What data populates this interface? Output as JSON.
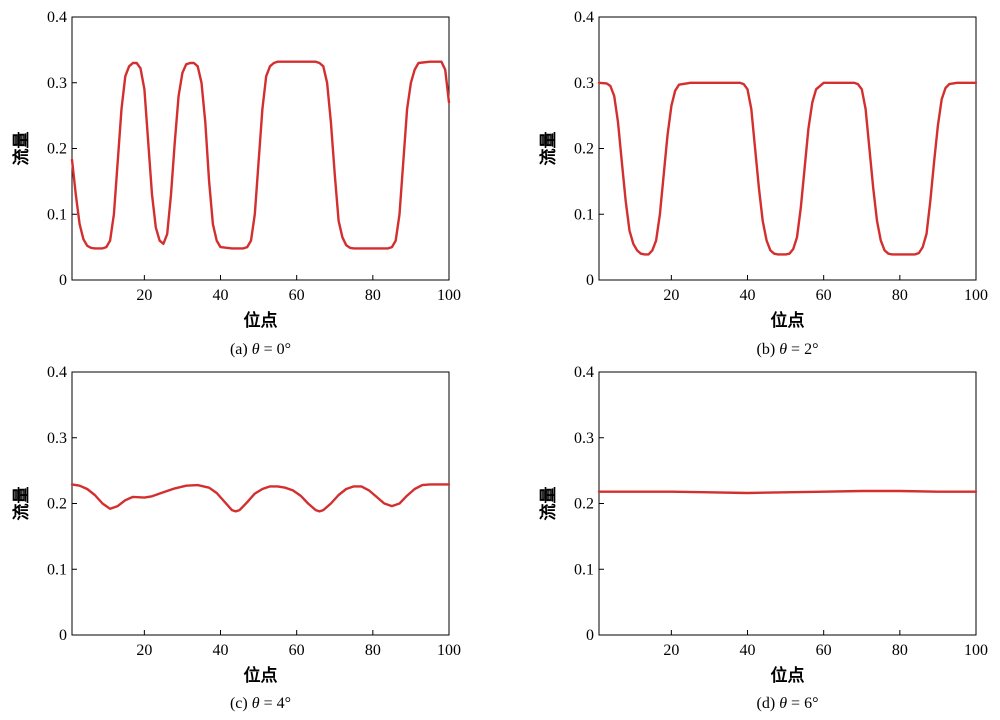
{
  "colors": {
    "series": "#d32f2f",
    "axis": "#000000",
    "background": "#ffffff"
  },
  "chart_data": [
    {
      "type": "line",
      "caption": {
        "prefix": "(a) ",
        "symbol": "θ",
        "suffix": " = 0°"
      },
      "xlabel": "位点",
      "ylabel": "流量",
      "xlim": [
        1,
        100
      ],
      "ylim": [
        0,
        0.4
      ],
      "xticks": [
        20,
        40,
        60,
        80,
        100
      ],
      "xtick_labels": [
        "20",
        "40",
        "60",
        "80",
        "100"
      ],
      "yticks": [
        0,
        0.1,
        0.2,
        0.3,
        0.4
      ],
      "ytick_labels": [
        "0",
        "0.1",
        "0.2",
        "0.3",
        "0.4"
      ],
      "grid": false,
      "series": [
        {
          "x": [
            1,
            2,
            3,
            4,
            5,
            6,
            7,
            9,
            10,
            11,
            12,
            13,
            14,
            15,
            16,
            17,
            18,
            19,
            20,
            21,
            22,
            23,
            24,
            25,
            26,
            27,
            28,
            29,
            30,
            31,
            32,
            33,
            34,
            35,
            36,
            37,
            38,
            39,
            40,
            43,
            46,
            47,
            48,
            49,
            50,
            51,
            52,
            53,
            54,
            55,
            56,
            60,
            65,
            66,
            67,
            68,
            69,
            70,
            71,
            72,
            73,
            74,
            75,
            80,
            84,
            85,
            86,
            87,
            88,
            89,
            90,
            91,
            92,
            95,
            98,
            99,
            100
          ],
          "y": [
            0.183,
            0.13,
            0.085,
            0.062,
            0.052,
            0.049,
            0.048,
            0.048,
            0.05,
            0.06,
            0.1,
            0.18,
            0.26,
            0.31,
            0.325,
            0.33,
            0.33,
            0.322,
            0.29,
            0.21,
            0.13,
            0.08,
            0.06,
            0.055,
            0.07,
            0.13,
            0.21,
            0.28,
            0.315,
            0.328,
            0.33,
            0.33,
            0.325,
            0.3,
            0.24,
            0.15,
            0.085,
            0.06,
            0.05,
            0.048,
            0.048,
            0.05,
            0.06,
            0.1,
            0.18,
            0.26,
            0.31,
            0.325,
            0.33,
            0.332,
            0.332,
            0.332,
            0.332,
            0.33,
            0.325,
            0.3,
            0.24,
            0.16,
            0.09,
            0.065,
            0.053,
            0.049,
            0.048,
            0.048,
            0.048,
            0.05,
            0.06,
            0.1,
            0.18,
            0.26,
            0.3,
            0.32,
            0.33,
            0.332,
            0.332,
            0.32,
            0.27
          ]
        }
      ]
    },
    {
      "type": "line",
      "caption": {
        "prefix": "(b) ",
        "symbol": "θ",
        "suffix": " = 2°"
      },
      "xlabel": "位点",
      "ylabel": "流量",
      "xlim": [
        1,
        100
      ],
      "ylim": [
        0,
        0.4
      ],
      "xticks": [
        20,
        40,
        60,
        80,
        100
      ],
      "xtick_labels": [
        "20",
        "40",
        "60",
        "80",
        "100"
      ],
      "yticks": [
        0,
        0.1,
        0.2,
        0.3,
        0.4
      ],
      "ytick_labels": [
        "0",
        "0.1",
        "0.2",
        "0.3",
        "0.4"
      ],
      "grid": false,
      "series": [
        {
          "x": [
            1,
            3,
            4,
            5,
            6,
            7,
            8,
            9,
            10,
            11,
            12,
            13,
            14,
            15,
            16,
            17,
            18,
            19,
            20,
            21,
            22,
            25,
            30,
            35,
            38,
            39,
            40,
            41,
            42,
            43,
            44,
            45,
            46,
            47,
            48,
            49,
            50,
            51,
            52,
            53,
            54,
            55,
            56,
            57,
            58,
            60,
            65,
            68,
            69,
            70,
            71,
            72,
            73,
            74,
            75,
            76,
            77,
            78,
            80,
            82,
            84,
            85,
            86,
            87,
            88,
            89,
            90,
            91,
            92,
            93,
            95,
            100
          ],
          "y": [
            0.3,
            0.299,
            0.295,
            0.28,
            0.24,
            0.18,
            0.12,
            0.075,
            0.055,
            0.045,
            0.04,
            0.039,
            0.039,
            0.045,
            0.06,
            0.1,
            0.16,
            0.22,
            0.265,
            0.288,
            0.297,
            0.3,
            0.3,
            0.3,
            0.3,
            0.298,
            0.29,
            0.26,
            0.2,
            0.14,
            0.09,
            0.06,
            0.045,
            0.04,
            0.039,
            0.039,
            0.039,
            0.04,
            0.047,
            0.065,
            0.11,
            0.17,
            0.23,
            0.27,
            0.29,
            0.3,
            0.3,
            0.3,
            0.298,
            0.29,
            0.26,
            0.2,
            0.14,
            0.09,
            0.06,
            0.045,
            0.04,
            0.039,
            0.039,
            0.039,
            0.039,
            0.041,
            0.05,
            0.07,
            0.12,
            0.18,
            0.235,
            0.275,
            0.292,
            0.298,
            0.3,
            0.3
          ]
        }
      ]
    },
    {
      "type": "line",
      "caption": {
        "prefix": "(c) ",
        "symbol": "θ",
        "suffix": " = 4°"
      },
      "xlabel": "位点",
      "ylabel": "流量",
      "xlim": [
        1,
        100
      ],
      "ylim": [
        0,
        0.4
      ],
      "xticks": [
        20,
        40,
        60,
        80,
        100
      ],
      "xtick_labels": [
        "20",
        "40",
        "60",
        "80",
        "100"
      ],
      "yticks": [
        0,
        0.1,
        0.2,
        0.3,
        0.4
      ],
      "ytick_labels": [
        "0",
        "0.1",
        "0.2",
        "0.3",
        "0.4"
      ],
      "grid": false,
      "series": [
        {
          "x": [
            1,
            3,
            5,
            7,
            9,
            11,
            13,
            15,
            17,
            20,
            22,
            25,
            28,
            31,
            34,
            37,
            39,
            41,
            43,
            44,
            45,
            47,
            49,
            51,
            53,
            55,
            57,
            59,
            61,
            63,
            65,
            66,
            67,
            69,
            71,
            73,
            75,
            77,
            79,
            81,
            83,
            85,
            87,
            89,
            91,
            93,
            95,
            97,
            100
          ],
          "y": [
            0.229,
            0.227,
            0.222,
            0.213,
            0.2,
            0.192,
            0.196,
            0.205,
            0.21,
            0.209,
            0.211,
            0.217,
            0.223,
            0.227,
            0.228,
            0.224,
            0.216,
            0.203,
            0.19,
            0.188,
            0.19,
            0.202,
            0.215,
            0.222,
            0.226,
            0.226,
            0.224,
            0.22,
            0.212,
            0.2,
            0.19,
            0.188,
            0.19,
            0.2,
            0.213,
            0.222,
            0.226,
            0.226,
            0.22,
            0.21,
            0.2,
            0.196,
            0.2,
            0.212,
            0.222,
            0.228,
            0.229,
            0.229,
            0.229
          ]
        }
      ]
    },
    {
      "type": "line",
      "caption": {
        "prefix": "(d) ",
        "symbol": "θ",
        "suffix": " = 6°"
      },
      "xlabel": "位点",
      "ylabel": "流量",
      "xlim": [
        1,
        100
      ],
      "ylim": [
        0,
        0.4
      ],
      "xticks": [
        20,
        40,
        60,
        80,
        100
      ],
      "xtick_labels": [
        "20",
        "40",
        "60",
        "80",
        "100"
      ],
      "yticks": [
        0,
        0.1,
        0.2,
        0.3,
        0.4
      ],
      "ytick_labels": [
        "0",
        "0.1",
        "0.2",
        "0.3",
        "0.4"
      ],
      "grid": false,
      "series": [
        {
          "x": [
            1,
            10,
            20,
            30,
            40,
            50,
            60,
            70,
            80,
            90,
            100
          ],
          "y": [
            0.218,
            0.218,
            0.218,
            0.217,
            0.216,
            0.217,
            0.218,
            0.219,
            0.219,
            0.218,
            0.218
          ]
        }
      ]
    }
  ]
}
